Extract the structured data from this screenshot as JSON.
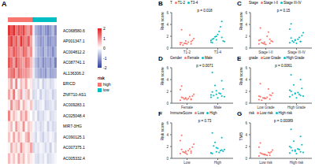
{
  "chart_data": [
    {
      "panel": "A",
      "type": "heatmap",
      "rows": [
        "AC068580.6",
        "AP001347.1",
        "AC004812.2",
        "AC087741.1",
        "AL136306.2",
        "ERICD",
        "ZNF710-AS1",
        "AC009283.1",
        "AC025048.4",
        "MIR7-3HG",
        "AC090125.1",
        "AC007375.1",
        "AC005332.4"
      ],
      "cells": [
        [
          1.8,
          1.5,
          1.9,
          1.2,
          1.6,
          1.4,
          1.7,
          1.1,
          0.9,
          1.3,
          -0.2,
          -0.8,
          -1.0,
          -1.2,
          -0.9,
          -1.1,
          -1.3,
          -1.0,
          -0.7,
          -1.2
        ],
        [
          1.4,
          1.7,
          1.2,
          1.5,
          1.0,
          1.8,
          1.3,
          1.1,
          1.5,
          0.8,
          -0.1,
          -0.6,
          -0.9,
          -1.1,
          -1.0,
          -0.8,
          -1.2,
          -1.1,
          -0.9,
          -1.0
        ],
        [
          1.2,
          1.0,
          1.5,
          1.3,
          1.1,
          0.9,
          1.4,
          1.2,
          0.7,
          1.0,
          0.1,
          -0.5,
          -0.8,
          -0.9,
          -1.1,
          -0.7,
          -1.0,
          -0.9,
          -1.2,
          -0.8
        ],
        [
          1.5,
          1.3,
          0.9,
          1.6,
          1.2,
          1.0,
          0.8,
          1.3,
          1.1,
          0.6,
          -0.3,
          -0.7,
          -1.0,
          -0.8,
          -1.2,
          -1.0,
          -0.9,
          -1.1,
          -0.8,
          -1.3
        ],
        [
          1.0,
          1.2,
          1.4,
          0.8,
          1.3,
          1.1,
          0.9,
          1.0,
          0.8,
          0.5,
          -0.2,
          -0.6,
          -0.8,
          -1.0,
          -0.9,
          -1.1,
          -0.7,
          -1.0,
          -0.9,
          -0.8
        ],
        [
          0.4,
          0.9,
          0.2,
          1.1,
          -0.1,
          0.6,
          0.3,
          0.8,
          0.1,
          0.2,
          -0.3,
          -0.2,
          -0.4,
          -0.1,
          -0.5,
          -0.3,
          -0.2,
          -0.4,
          -0.3,
          -0.1
        ],
        [
          0.8,
          0.3,
          1.2,
          0.1,
          0.5,
          0.9,
          -0.2,
          0.4,
          0.7,
          0.1,
          -0.4,
          -0.3,
          -0.1,
          -0.5,
          -0.2,
          -0.4,
          -0.3,
          -0.2,
          -0.5,
          -0.3
        ],
        [
          0.2,
          1.0,
          0.4,
          0.6,
          0.9,
          0.1,
          0.7,
          0.3,
          -0.1,
          0.5,
          -0.2,
          -0.4,
          -0.3,
          -0.2,
          -0.1,
          -0.5,
          -0.4,
          -0.3,
          -0.2,
          -0.4
        ],
        [
          1.1,
          0.2,
          0.6,
          0.3,
          0.1,
          0.8,
          0.4,
          0.9,
          0.2,
          0.0,
          -0.3,
          -0.1,
          -0.5,
          -0.3,
          -0.4,
          -0.2,
          -0.1,
          -0.4,
          -0.3,
          -0.2
        ],
        [
          0.3,
          0.6,
          0.1,
          0.9,
          0.4,
          0.2,
          1.0,
          0.1,
          0.5,
          0.3,
          -0.1,
          -0.3,
          -0.2,
          -0.4,
          -0.3,
          -0.1,
          -0.5,
          -0.2,
          -0.4,
          -0.3
        ],
        [
          0.5,
          0.1,
          0.8,
          0.2,
          0.7,
          0.3,
          0.1,
          0.6,
          0.9,
          0.2,
          -0.2,
          -0.4,
          -0.1,
          -0.3,
          -0.5,
          -0.2,
          -0.3,
          -0.1,
          -0.2,
          -0.4
        ],
        [
          0.1,
          0.7,
          0.3,
          0.5,
          0.2,
          1.0,
          0.4,
          0.2,
          0.3,
          0.8,
          -0.4,
          -0.2,
          -0.3,
          -0.1,
          -0.2,
          -0.4,
          -0.2,
          -0.5,
          -0.1,
          -0.3
        ],
        [
          0.6,
          0.2,
          0.5,
          0.1,
          0.8,
          0.3,
          0.6,
          0.1,
          0.4,
          0.2,
          -0.1,
          -0.3,
          -0.4,
          -0.2,
          -0.3,
          -0.1,
          -0.4,
          -0.3,
          -0.2,
          -0.1
        ]
      ],
      "colorbar": {
        "range": [
          -2,
          2
        ],
        "ticks": [
          -2,
          -1,
          0,
          1,
          2
        ],
        "colors": [
          "#2E3FA0",
          "#FFFFFF",
          "#E02020"
        ]
      },
      "annotation": {
        "name": "risk",
        "values": [
          "high",
          "high",
          "high",
          "high",
          "high",
          "high",
          "high",
          "high",
          "high",
          "high",
          "low",
          "low",
          "low",
          "low",
          "low",
          "low",
          "low",
          "low",
          "low",
          "low"
        ],
        "colors": {
          "high": "#F8766D",
          "low": "#00BFC4"
        }
      }
    },
    {
      "panel": "B",
      "type": "dot",
      "y_label": "Risk score",
      "legend_title": "T",
      "annotation": "p = 0.018",
      "ylim": [
        0,
        6
      ],
      "yticks": [
        0,
        2,
        4,
        6
      ],
      "series": [
        {
          "name": "T1-2",
          "color": "#F8766D",
          "values": [
            0.6,
            0.8,
            1.1,
            0.9,
            0.7,
            1.3,
            0.5,
            1.0,
            1.6,
            0.8,
            2.2,
            0.9,
            1.2,
            0.7,
            3.1
          ]
        },
        {
          "name": "T3-4",
          "color": "#00BFC4",
          "values": [
            1.0,
            1.4,
            1.8,
            0.9,
            2.3,
            1.2,
            1.6,
            2.8,
            1.1,
            1.9,
            3.6,
            1.3,
            2.0,
            4.5,
            1.5
          ]
        }
      ]
    },
    {
      "panel": "C",
      "type": "dot",
      "y_label": "Risk score",
      "legend_title": "Stage",
      "annotation": "p = 0.15",
      "ylim": [
        0,
        6
      ],
      "yticks": [
        0,
        2,
        4,
        6
      ],
      "series": [
        {
          "name": "Stage I-II",
          "color": "#F8766D",
          "values": [
            0.7,
            1.0,
            0.8,
            1.4,
            0.6,
            1.2,
            0.9,
            2.0,
            1.1,
            0.8,
            2.7,
            1.3,
            0.7,
            1.5,
            3.4
          ]
        },
        {
          "name": "Stage III-IV",
          "color": "#00BFC4",
          "values": [
            0.9,
            1.3,
            1.1,
            1.7,
            0.8,
            2.1,
            1.2,
            1.5,
            2.6,
            1.0,
            1.8,
            3.2,
            1.4,
            1.1,
            4.1
          ]
        }
      ]
    },
    {
      "panel": "D",
      "type": "dot",
      "y_label": "Risk score",
      "legend_title": "Gender",
      "annotation": "p = 0.0071",
      "ylim": [
        0,
        6
      ],
      "yticks": [
        0,
        2,
        4,
        6
      ],
      "series": [
        {
          "name": "Female",
          "color": "#F8766D",
          "values": [
            0.5,
            0.8,
            0.7,
            1.0,
            0.6,
            1.2,
            0.9,
            0.8,
            1.5,
            0.7,
            1.1,
            2.3,
            0.9,
            0.6,
            2.9
          ]
        },
        {
          "name": "Male",
          "color": "#00BFC4",
          "values": [
            1.0,
            1.5,
            1.2,
            1.9,
            0.9,
            2.4,
            1.3,
            1.7,
            1.1,
            3.0,
            1.6,
            1.4,
            2.1,
            3.8,
            5.2
          ]
        }
      ]
    },
    {
      "panel": "E",
      "type": "dot",
      "y_label": "Risk score",
      "legend_title": "grade",
      "annotation": "p = 0.0061",
      "ylim": [
        0,
        6
      ],
      "yticks": [
        0,
        2,
        4,
        6
      ],
      "series": [
        {
          "name": "Low Grade",
          "color": "#F8766D",
          "values": [
            0.6,
            0.9,
            0.7,
            1.1,
            0.8,
            1.3,
            0.5,
            1.0,
            1.7,
            0.9,
            2.4,
            1.2,
            0.8,
            1.4,
            3.3
          ]
        },
        {
          "name": "High Grade",
          "color": "#00BFC4",
          "values": [
            1.1,
            1.6,
            1.3,
            2.0,
            0.9,
            2.5,
            1.4,
            1.8,
            1.2,
            3.1,
            1.5,
            2.2,
            1.7,
            4.0,
            4.8
          ]
        }
      ]
    },
    {
      "panel": "F",
      "type": "dot",
      "y_label": "Risk score",
      "legend_title": "ImmuneScore",
      "annotation": "p = 0.73",
      "ylim": [
        0,
        6
      ],
      "yticks": [
        0,
        2,
        4,
        6
      ],
      "series": [
        {
          "name": "Low",
          "color": "#F8766D",
          "values": [
            0.8,
            1.2,
            0.9,
            1.5,
            0.7,
            1.9,
            1.1,
            1.3,
            2.4,
            1.0,
            1.6,
            3.0,
            0.9,
            1.2,
            3.9
          ]
        },
        {
          "name": "High",
          "color": "#00BFC4",
          "values": [
            0.9,
            1.1,
            1.4,
            0.8,
            1.7,
            1.2,
            2.1,
            1.0,
            1.5,
            2.7,
            1.3,
            0.9,
            1.8,
            3.5,
            4.3
          ]
        }
      ]
    },
    {
      "panel": "G",
      "type": "dot",
      "y_label": "TMB",
      "legend_title": "risk",
      "annotation": "p = 0.00089",
      "ylim": [
        0,
        6
      ],
      "yticks": [
        0,
        2,
        4,
        6
      ],
      "series": [
        {
          "name": "Low risk",
          "color": "#F8766D",
          "values": [
            0.4,
            0.7,
            0.5,
            0.9,
            0.6,
            1.1,
            0.8,
            0.5,
            1.4,
            0.7,
            1.0,
            1.9,
            0.6,
            0.9,
            2.6
          ]
        },
        {
          "name": "High risk",
          "color": "#00BFC4",
          "values": [
            0.9,
            1.4,
            1.1,
            1.8,
            0.8,
            2.3,
            1.3,
            1.6,
            1.0,
            2.9,
            1.5,
            2.0,
            1.2,
            3.7,
            4.9
          ]
        }
      ]
    }
  ]
}
